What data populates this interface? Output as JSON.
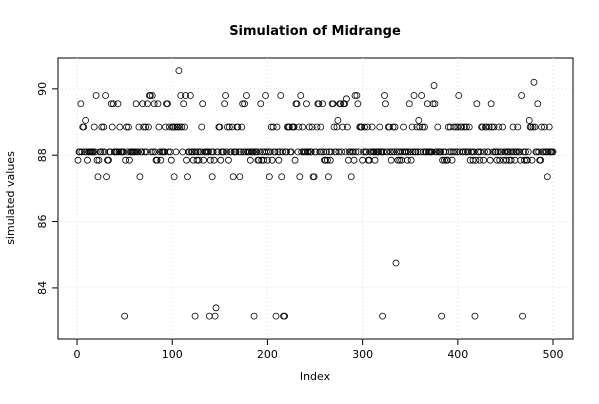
{
  "chart_data": {
    "type": "scatter",
    "title": "Simulation of Midrange",
    "xlabel": "Index",
    "ylabel": "simulated values",
    "xlim": [
      -20,
      521
    ],
    "ylim": [
      82.46,
      90.93
    ],
    "xticks": [
      0,
      100,
      200,
      300,
      400,
      500
    ],
    "yticks": [
      84,
      86,
      88,
      90
    ],
    "grid": true,
    "color": "#000000",
    "values": [
      87.85,
      88.1,
      88.1,
      89.55,
      88.1,
      88.85,
      88.85,
      88.1,
      89.05,
      88.1,
      87.85,
      88.1,
      88.1,
      88.1,
      88.1,
      88.1,
      88.1,
      88.85,
      88.1,
      89.8,
      87.85,
      87.35,
      87.85,
      88.1,
      88.1,
      88.85,
      88.1,
      88.85,
      88.1,
      89.8,
      87.35,
      87.85,
      87.85,
      88.1,
      88.1,
      89.55,
      88.85,
      89.55,
      88.1,
      88.1,
      88.1,
      88.1,
      89.55,
      88.1,
      88.85,
      88.1,
      88.1,
      88.1,
      88.1,
      83.15,
      87.85,
      88.85,
      88.1,
      88.85,
      87.85,
      88.1,
      88.1,
      88.1,
      88.1,
      88.1,
      88.1,
      89.55,
      88.1,
      88.1,
      88.85,
      87.35,
      88.1,
      88.1,
      89.55,
      88.85,
      88.1,
      88.85,
      88.1,
      89.55,
      88.85,
      89.8,
      89.8,
      88.1,
      89.8,
      88.1,
      89.55,
      88.1,
      87.85,
      87.85,
      89.55,
      88.85,
      88.1,
      87.85,
      88.1,
      88.1,
      88.1,
      88.1,
      88.85,
      89.55,
      89.55,
      88.1,
      88.85,
      88.1,
      87.85,
      88.85,
      88.85,
      87.35,
      88.85,
      88.1,
      88.85,
      88.85,
      90.55,
      88.85,
      89.8,
      88.85,
      88.1,
      89.55,
      88.85,
      89.8,
      87.85,
      87.35,
      88.1,
      88.1,
      89.8,
      88.1,
      88.1,
      87.85,
      88.1,
      83.15,
      88.1,
      87.85,
      88.1,
      87.85,
      88.1,
      88.1,
      88.85,
      89.55,
      87.85,
      88.1,
      88.1,
      88.1,
      88.1,
      88.1,
      83.15,
      87.85,
      88.1,
      87.35,
      88.1,
      87.85,
      83.15,
      83.4,
      88.1,
      88.1,
      88.85,
      88.85,
      87.85,
      88.1,
      88.1,
      88.1,
      89.55,
      89.8,
      88.1,
      88.85,
      87.85,
      88.85,
      88.1,
      88.1,
      88.85,
      87.35,
      88.1,
      88.1,
      88.1,
      88.85,
      88.85,
      88.1,
      87.35,
      88.1,
      88.85,
      89.55,
      88.1,
      89.55,
      88.1,
      89.8,
      88.1,
      88.1,
      88.1,
      87.85,
      88.1,
      88.1,
      88.1,
      83.15,
      88.1,
      88.1,
      88.1,
      87.85,
      87.85,
      88.1,
      89.55,
      87.85,
      88.1,
      87.85,
      88.1,
      89.8,
      88.1,
      87.85,
      88.1,
      87.35,
      88.1,
      88.85,
      87.85,
      88.85,
      88.1,
      88.1,
      83.15,
      88.85,
      88.1,
      87.85,
      88.1,
      89.8,
      87.35,
      88.1,
      83.15,
      83.15,
      88.1,
      88.1,
      88.85,
      88.85,
      88.85,
      88.1,
      88.1,
      88.85,
      88.85,
      88.85,
      87.85,
      89.55,
      89.55,
      88.1,
      88.85,
      87.35,
      89.8,
      88.1,
      88.85,
      88.1,
      88.1,
      88.1,
      89.55,
      88.1,
      88.1,
      88.85,
      88.1,
      88.1,
      88.85,
      87.35,
      87.35,
      88.1,
      88.1,
      88.85,
      89.55,
      89.55,
      88.1,
      88.85,
      88.1,
      89.55,
      88.1,
      87.85,
      87.85,
      88.1,
      87.85,
      87.35,
      88.1,
      87.85,
      88.1,
      89.55,
      89.55,
      88.85,
      88.1,
      88.1,
      88.85,
      89.05,
      88.1,
      89.55,
      89.55,
      88.1,
      88.85,
      89.55,
      89.55,
      88.1,
      89.7,
      88.85,
      87.85,
      88.1,
      88.1,
      87.35,
      88.1,
      88.1,
      87.85,
      89.8,
      88.1,
      89.8,
      89.55,
      88.1,
      88.85,
      88.85,
      88.85,
      87.85,
      88.1,
      88.85,
      88.1,
      88.1,
      88.85,
      87.85,
      87.85,
      88.1,
      88.1,
      88.85,
      88.1,
      88.1,
      87.85,
      88.1,
      88.1,
      88.1,
      88.1,
      88.85,
      88.1,
      88.1,
      83.15,
      88.1,
      89.8,
      89.55,
      88.1,
      88.1,
      88.85,
      88.85,
      88.1,
      87.85,
      88.1,
      88.85,
      88.1,
      88.85,
      84.75,
      88.1,
      87.85,
      88.1,
      87.85,
      88.1,
      87.85,
      88.1,
      88.85,
      88.1,
      88.1,
      88.1,
      87.85,
      88.1,
      89.55,
      88.1,
      87.85,
      88.85,
      88.1,
      89.8,
      88.1,
      88.1,
      88.85,
      88.1,
      89.05,
      88.85,
      88.1,
      89.8,
      88.85,
      88.1,
      88.85,
      88.1,
      88.1,
      89.55,
      88.1,
      88.1,
      88.1,
      88.1,
      88.1,
      89.55,
      90.1,
      89.55,
      88.1,
      88.1,
      88.85,
      88.1,
      88.1,
      88.1,
      83.15,
      87.85,
      88.1,
      87.85,
      88.1,
      87.85,
      87.85,
      88.85,
      88.1,
      88.85,
      88.1,
      87.85,
      88.1,
      88.85,
      88.1,
      88.85,
      88.1,
      88.85,
      89.8,
      88.1,
      88.85,
      88.85,
      88.1,
      88.1,
      88.85,
      88.1,
      88.85,
      88.1,
      88.1,
      88.85,
      87.85,
      88.1,
      88.1,
      87.85,
      88.1,
      83.15,
      87.85,
      89.55,
      88.1,
      88.1,
      87.85,
      88.1,
      88.85,
      88.85,
      87.85,
      88.1,
      88.85,
      88.85,
      88.1,
      88.1,
      88.85,
      87.85,
      89.55,
      88.85,
      88.1,
      88.85,
      88.1,
      88.1,
      87.85,
      88.1,
      88.85,
      87.85,
      88.1,
      88.1,
      88.85,
      87.85,
      88.1,
      88.1,
      87.85,
      88.1,
      88.1,
      87.85,
      88.1,
      87.85,
      88.1,
      88.85,
      88.1,
      87.85,
      88.1,
      88.1,
      88.85,
      88.1,
      88.1,
      87.85,
      89.8,
      83.15,
      88.1,
      87.85,
      88.1,
      87.85,
      87.85,
      88.1,
      89.05,
      88.85,
      88.85,
      87.85,
      88.85,
      90.2,
      88.85,
      88.1,
      88.1,
      89.55,
      88.1,
      87.85,
      87.85,
      88.85,
      88.1,
      88.1,
      88.85,
      88.1,
      88.1,
      87.35,
      88.1,
      88.85,
      88.1,
      88.1,
      88.1,
      88.1
    ]
  }
}
